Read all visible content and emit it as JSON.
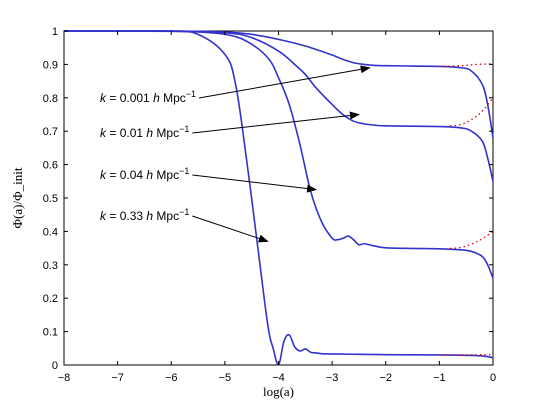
{
  "chart_data": {
    "type": "line",
    "xlabel": "log(a)",
    "ylabel": "Φ(a)/Φ_init",
    "xlim": [
      -8,
      0
    ],
    "ylim": [
      0,
      1
    ],
    "xticks": [
      "−8",
      "−7",
      "−6",
      "−5",
      "−4",
      "−3",
      "−2",
      "−1",
      "0"
    ],
    "yticks": [
      "0",
      "0.1",
      "0.2",
      "0.3",
      "0.4",
      "0.5",
      "0.6",
      "0.7",
      "0.8",
      "0.9",
      "1"
    ],
    "grid": false,
    "colors": {
      "solid": "#3333cc",
      "dotted": "#dd0000"
    },
    "series": [
      {
        "style": "solid",
        "x": [
          -8,
          -6,
          -5.5,
          -5,
          -4.8,
          -4.6,
          -4.4,
          -4.2,
          -4.1,
          -4.0,
          -3.9,
          -3.8,
          -3.7,
          -3.6,
          -3.5,
          -3.4,
          -3.3,
          -3.2,
          -3.0,
          -2.5,
          -2.0,
          -1.0,
          -0.5,
          -0.2,
          0
        ],
        "y": [
          1,
          0.999,
          0.99,
          0.93,
          0.84,
          0.62,
          0.37,
          0.12,
          0.05,
          0.0,
          0.07,
          0.09,
          0.055,
          0.042,
          0.048,
          0.038,
          0.036,
          0.034,
          0.033,
          0.032,
          0.031,
          0.03,
          0.029,
          0.027,
          0.022
        ]
      },
      {
        "style": "solid",
        "x": [
          -8,
          -6,
          -5.5,
          -5,
          -4.6,
          -4.2,
          -4.0,
          -3.8,
          -3.6,
          -3.4,
          -3.2,
          -3.0,
          -2.9,
          -2.8,
          -2.7,
          -2.6,
          -2.5,
          -2.4,
          -2.2,
          -2.0,
          -1.5,
          -1.0,
          -0.6,
          -0.4,
          -0.2,
          -0.1,
          0
        ],
        "y": [
          1,
          1,
          0.997,
          0.99,
          0.97,
          0.92,
          0.86,
          0.78,
          0.66,
          0.52,
          0.43,
          0.38,
          0.375,
          0.379,
          0.386,
          0.375,
          0.36,
          0.363,
          0.356,
          0.351,
          0.349,
          0.348,
          0.345,
          0.34,
          0.325,
          0.3,
          0.26
        ]
      },
      {
        "style": "solid",
        "x": [
          -8,
          -6,
          -5,
          -4.5,
          -4,
          -3.7,
          -3.5,
          -3.3,
          -3.0,
          -2.8,
          -2.6,
          -2.4,
          -2.2,
          -2.0,
          -1.5,
          -1.0,
          -0.6,
          -0.4,
          -0.2,
          -0.1,
          0
        ],
        "y": [
          1,
          1,
          0.995,
          0.98,
          0.94,
          0.9,
          0.87,
          0.83,
          0.78,
          0.75,
          0.73,
          0.722,
          0.718,
          0.716,
          0.715,
          0.714,
          0.71,
          0.7,
          0.67,
          0.62,
          0.55
        ]
      },
      {
        "style": "solid",
        "x": [
          -8,
          -6,
          -5,
          -4.5,
          -4,
          -3.5,
          -3.0,
          -2.8,
          -2.6,
          -2.4,
          -2.2,
          -2.0,
          -1.5,
          -1.0,
          -0.6,
          -0.4,
          -0.2,
          -0.1,
          0
        ],
        "y": [
          1,
          1,
          0.997,
          0.99,
          0.975,
          0.955,
          0.928,
          0.915,
          0.905,
          0.9,
          0.897,
          0.896,
          0.895,
          0.894,
          0.89,
          0.88,
          0.84,
          0.78,
          0.68
        ]
      },
      {
        "style": "dotted",
        "x": [
          -1.0,
          -0.6,
          -0.3,
          0
        ],
        "y": [
          0.894,
          0.896,
          0.9,
          0.902
        ]
      },
      {
        "style": "dotted",
        "x": [
          -0.8,
          -0.6,
          -0.4,
          -0.2,
          0
        ],
        "y": [
          0.716,
          0.72,
          0.735,
          0.76,
          0.8
        ]
      },
      {
        "style": "dotted",
        "x": [
          -0.8,
          -0.6,
          -0.4,
          -0.2,
          0
        ],
        "y": [
          0.349,
          0.352,
          0.362,
          0.378,
          0.4
        ]
      },
      {
        "style": "dotted",
        "x": [
          -1.0,
          -0.5,
          0
        ],
        "y": [
          0.03,
          0.03,
          0.031
        ]
      }
    ],
    "annotations": [
      {
        "k": "0.001",
        "target": [
          -2.3,
          0.89
        ]
      },
      {
        "k": "0.01",
        "target": [
          -2.5,
          0.75
        ]
      },
      {
        "k": "0.04",
        "target": [
          -3.3,
          0.525
        ]
      },
      {
        "k": "0.33",
        "target": [
          -4.2,
          0.37
        ]
      }
    ],
    "annotation_parts": {
      "k": "k",
      "eq": " = ",
      "h": "h",
      "unit": "Mpc",
      "exp": "−1"
    }
  }
}
